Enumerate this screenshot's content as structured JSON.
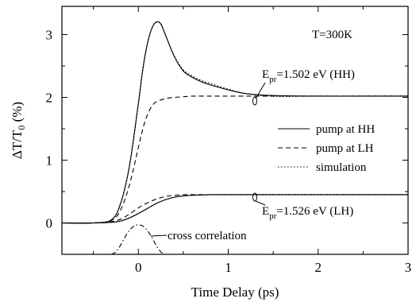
{
  "chart_data": {
    "type": "line",
    "xlabel": "Time Delay (ps)",
    "ylabel": "ΔT/T0 (%)",
    "xlim": [
      -0.85,
      3.0
    ],
    "ylim": [
      -0.5,
      3.45
    ],
    "xticks": [
      0,
      1,
      2,
      3
    ],
    "xtick_labels": [
      "0",
      "1",
      "2",
      "3"
    ],
    "yticks": [
      0,
      1,
      2,
      3
    ],
    "ytick_labels": [
      "0",
      "1",
      "2",
      "3"
    ],
    "grid": false,
    "legend_position": "right",
    "legend": [
      {
        "label": "pump at HH",
        "style": "solid"
      },
      {
        "label": "pump at LH",
        "style": "dashed"
      },
      {
        "label": "simulation",
        "style": "dotted"
      }
    ],
    "annotations": {
      "temperature": "T=300K",
      "hh_probe": {
        "prefix": "E",
        "sub": "pr",
        "text": "=1.502 eV (HH)"
      },
      "lh_probe": {
        "prefix": "E",
        "sub": "pr",
        "text": "=1.526 eV (LH)"
      },
      "cross_correlation": "cross correlation"
    },
    "series": [
      {
        "name": "HH probe, pump at HH",
        "style": "solid",
        "x": [
          -0.85,
          -0.5,
          -0.3,
          -0.2,
          -0.1,
          0.0,
          0.05,
          0.1,
          0.15,
          0.2,
          0.25,
          0.3,
          0.4,
          0.5,
          0.6,
          0.7,
          0.8,
          1.0,
          1.2,
          1.5,
          2.0,
          2.5,
          3.0
        ],
        "y": [
          0.0,
          0.0,
          0.05,
          0.3,
          0.9,
          1.9,
          2.45,
          2.85,
          3.1,
          3.2,
          3.17,
          3.0,
          2.65,
          2.42,
          2.32,
          2.25,
          2.2,
          2.12,
          2.06,
          2.03,
          2.02,
          2.02,
          2.02
        ]
      },
      {
        "name": "HH probe, pump at LH",
        "style": "dashed",
        "x": [
          -0.85,
          -0.5,
          -0.3,
          -0.2,
          -0.1,
          0.0,
          0.05,
          0.1,
          0.15,
          0.2,
          0.3,
          0.4,
          0.5,
          0.6,
          0.8,
          1.0,
          1.5,
          2.0,
          2.5,
          3.0
        ],
        "y": [
          0.0,
          0.0,
          0.04,
          0.2,
          0.6,
          1.2,
          1.5,
          1.72,
          1.86,
          1.93,
          1.98,
          2.0,
          2.01,
          2.02,
          2.02,
          2.02,
          2.02,
          2.02,
          2.02,
          2.02
        ]
      },
      {
        "name": "HH probe, simulation",
        "style": "dotted",
        "x": [
          -0.85,
          -0.5,
          -0.3,
          -0.2,
          -0.1,
          0.0,
          0.05,
          0.1,
          0.15,
          0.2,
          0.25,
          0.3,
          0.4,
          0.5,
          0.6,
          0.7,
          0.8,
          1.0,
          1.2,
          1.5,
          2.0,
          2.5,
          3.0
        ],
        "y": [
          0.0,
          0.0,
          0.05,
          0.3,
          0.9,
          1.9,
          2.45,
          2.85,
          3.1,
          3.2,
          3.17,
          3.0,
          2.66,
          2.44,
          2.34,
          2.27,
          2.22,
          2.13,
          2.06,
          2.02,
          2.02,
          2.02,
          2.02
        ]
      },
      {
        "name": "LH probe, pump at HH",
        "style": "solid",
        "x": [
          -0.85,
          -0.5,
          -0.3,
          -0.2,
          -0.1,
          0.0,
          0.1,
          0.2,
          0.3,
          0.4,
          0.5,
          0.6,
          0.8,
          1.0,
          1.5,
          2.0,
          2.5,
          3.0
        ],
        "y": [
          0.0,
          0.0,
          0.01,
          0.03,
          0.08,
          0.15,
          0.23,
          0.31,
          0.37,
          0.41,
          0.43,
          0.44,
          0.45,
          0.45,
          0.45,
          0.45,
          0.45,
          0.45
        ]
      },
      {
        "name": "LH probe, pump at LH",
        "style": "dashed",
        "x": [
          -0.85,
          -0.5,
          -0.3,
          -0.2,
          -0.1,
          0.0,
          0.1,
          0.2,
          0.3,
          0.4,
          0.5,
          0.6,
          0.8,
          1.0,
          1.5,
          2.0,
          2.5,
          3.0
        ],
        "y": [
          0.0,
          0.0,
          0.02,
          0.06,
          0.14,
          0.24,
          0.32,
          0.38,
          0.42,
          0.44,
          0.45,
          0.45,
          0.45,
          0.45,
          0.45,
          0.45,
          0.45,
          0.45
        ]
      },
      {
        "name": "LH probe, simulation",
        "style": "dotted",
        "x": [
          -0.85,
          -0.5,
          -0.3,
          -0.2,
          -0.1,
          0.0,
          0.1,
          0.2,
          0.3,
          0.4,
          0.5,
          0.6,
          0.8,
          1.0,
          1.5,
          2.0,
          2.5,
          3.0
        ],
        "y": [
          0.0,
          0.0,
          0.01,
          0.03,
          0.08,
          0.15,
          0.23,
          0.31,
          0.37,
          0.41,
          0.43,
          0.44,
          0.45,
          0.45,
          0.45,
          0.45,
          0.45,
          0.45
        ]
      },
      {
        "name": "cross correlation",
        "style": "dashdot",
        "x": [
          -0.3,
          -0.25,
          -0.2,
          -0.15,
          -0.1,
          -0.05,
          0.0,
          0.05,
          0.1,
          0.15,
          0.2,
          0.25,
          0.3
        ],
        "y": [
          -0.5,
          -0.46,
          -0.36,
          -0.23,
          -0.12,
          -0.05,
          -0.03,
          -0.05,
          -0.12,
          -0.23,
          -0.36,
          -0.46,
          -0.5
        ]
      }
    ]
  }
}
